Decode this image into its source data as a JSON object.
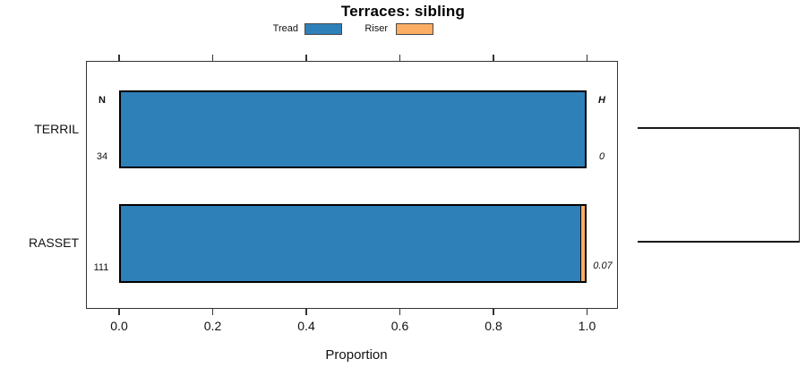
{
  "title": "Terraces: sibling",
  "legend": {
    "items": [
      {
        "label": "Tread",
        "color": "#2E80B9"
      },
      {
        "label": "Riser",
        "color": "#FCAD64"
      }
    ]
  },
  "axis": {
    "xlabel": "Proportion",
    "xtick_labels": [
      "0.0",
      "0.2",
      "0.4",
      "0.6",
      "0.8",
      "1.0"
    ]
  },
  "headers": {
    "n": "N",
    "h": "H"
  },
  "rows": [
    {
      "label": "TERRIL",
      "n": "34",
      "h": "0"
    },
    {
      "label": "RASSET",
      "n": "111",
      "h": "0.07"
    }
  ],
  "colors": {
    "tread": "#2E80B9",
    "riser": "#FCAD64",
    "bar_border": "#000000",
    "box_border": "#333333"
  },
  "chart_data": {
    "type": "bar",
    "orientation": "horizontal",
    "title": "Terraces: sibling",
    "xlabel": "Proportion",
    "ylabel": "",
    "xlim": [
      0,
      1
    ],
    "xticks": [
      0.0,
      0.2,
      0.4,
      0.6,
      0.8,
      1.0
    ],
    "categories": [
      "TERRIL",
      "RASSET"
    ],
    "series": [
      {
        "name": "Tread",
        "color": "#2E80B9",
        "values": [
          1.0,
          0.99
        ]
      },
      {
        "name": "Riser",
        "color": "#FCAD64",
        "values": [
          0.0,
          0.01
        ]
      }
    ],
    "annotations": {
      "sample_size_header": "N",
      "heterozygosity_header": "H",
      "sample_sizes": [
        34,
        111
      ],
      "heterozygosity": [
        0,
        0.07
      ]
    },
    "legend_position": "top-center",
    "grid": false,
    "dendrogram": {
      "side": "right",
      "joined_rows": [
        "TERRIL",
        "RASSET"
      ]
    }
  }
}
